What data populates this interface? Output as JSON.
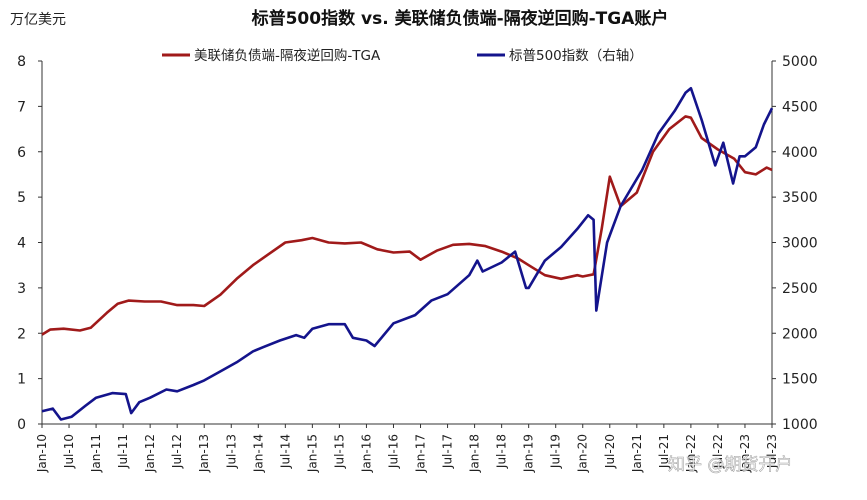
{
  "chart_data": {
    "type": "line",
    "title": "标普500指数 vs. 美联储负债端-隔夜逆回购-TGA账户",
    "y_left_unit": "万亿美元",
    "y_left_range": [
      0,
      8
    ],
    "y_left_ticks": [
      0,
      1,
      2,
      3,
      4,
      5,
      6,
      7,
      8
    ],
    "y_right_range": [
      1000,
      5000
    ],
    "y_right_ticks": [
      1000,
      1500,
      2000,
      2500,
      3000,
      3500,
      4000,
      4500,
      5000
    ],
    "x_range": [
      2010.0,
      2023.5
    ],
    "x_tick_labels": [
      "Jan-10",
      "Jul-10",
      "Jan-11",
      "Jul-11",
      "Jan-12",
      "Jul-12",
      "Jan-13",
      "Jul-13",
      "Jan-14",
      "Jul-14",
      "Jan-15",
      "Jul-15",
      "Jan-16",
      "Jul-16",
      "Jan-17",
      "Jul-17",
      "Jan-18",
      "Jul-18",
      "Jan-19",
      "Jul-19",
      "Jan-20",
      "Jul-20",
      "Jan-21",
      "Jul-21",
      "Jan-22",
      "Jul-22",
      "Jan-23",
      "Jul-23"
    ],
    "legend_position": "top",
    "grid": false,
    "series": [
      {
        "name": "美联储负债端-隔夜逆回购-TGA",
        "axis": "left",
        "color": "#a01a1a",
        "x": [
          2010.0,
          2010.15,
          2010.4,
          2010.7,
          2010.9,
          2011.2,
          2011.4,
          2011.6,
          2011.9,
          2012.2,
          2012.5,
          2012.8,
          2013.0,
          2013.3,
          2013.6,
          2013.9,
          2014.2,
          2014.5,
          2014.8,
          2015.0,
          2015.3,
          2015.6,
          2015.9,
          2016.2,
          2016.5,
          2016.8,
          2017.0,
          2017.3,
          2017.6,
          2017.9,
          2018.2,
          2018.5,
          2018.8,
          2019.0,
          2019.3,
          2019.6,
          2019.9,
          2020.0,
          2020.2,
          2020.35,
          2020.5,
          2020.7,
          2021.0,
          2021.3,
          2021.6,
          2021.9,
          2022.0,
          2022.2,
          2022.5,
          2022.8,
          2023.0,
          2023.2,
          2023.4,
          2023.5
        ],
        "y": [
          1.97,
          2.08,
          2.1,
          2.06,
          2.12,
          2.45,
          2.65,
          2.72,
          2.7,
          2.7,
          2.62,
          2.62,
          2.6,
          2.85,
          3.2,
          3.5,
          3.75,
          4.0,
          4.05,
          4.1,
          4.0,
          3.98,
          4.0,
          3.85,
          3.78,
          3.8,
          3.62,
          3.82,
          3.95,
          3.97,
          3.92,
          3.8,
          3.65,
          3.5,
          3.28,
          3.2,
          3.28,
          3.25,
          3.3,
          4.3,
          5.45,
          4.8,
          5.1,
          6.0,
          6.5,
          6.78,
          6.75,
          6.3,
          6.05,
          5.85,
          5.55,
          5.5,
          5.65,
          5.6
        ]
      },
      {
        "name": "标普500指数（右轴）",
        "axis": "right",
        "color": "#14148c",
        "x": [
          2010.0,
          2010.2,
          2010.35,
          2010.55,
          2010.8,
          2011.0,
          2011.3,
          2011.55,
          2011.65,
          2011.8,
          2012.0,
          2012.3,
          2012.5,
          2012.8,
          2013.0,
          2013.3,
          2013.6,
          2013.9,
          2014.1,
          2014.4,
          2014.7,
          2014.85,
          2015.0,
          2015.3,
          2015.6,
          2015.75,
          2016.0,
          2016.15,
          2016.5,
          2016.9,
          2017.2,
          2017.5,
          2017.9,
          2018.05,
          2018.15,
          2018.5,
          2018.75,
          2018.95,
          2019.0,
          2019.3,
          2019.6,
          2019.9,
          2020.1,
          2020.2,
          2020.25,
          2020.45,
          2020.7,
          2020.9,
          2021.1,
          2021.4,
          2021.7,
          2021.9,
          2022.0,
          2022.2,
          2022.45,
          2022.6,
          2022.78,
          2022.9,
          2023.0,
          2023.2,
          2023.35,
          2023.5
        ],
        "y": [
          1140,
          1170,
          1050,
          1080,
          1200,
          1290,
          1340,
          1330,
          1120,
          1240,
          1290,
          1380,
          1360,
          1430,
          1480,
          1580,
          1680,
          1800,
          1850,
          1920,
          1980,
          1950,
          2050,
          2100,
          2100,
          1950,
          1920,
          1860,
          2110,
          2200,
          2360,
          2430,
          2640,
          2800,
          2680,
          2780,
          2900,
          2500,
          2500,
          2800,
          2950,
          3150,
          3300,
          3250,
          2250,
          3000,
          3400,
          3600,
          3800,
          4200,
          4450,
          4650,
          4700,
          4350,
          3850,
          4100,
          3650,
          3950,
          3950,
          4050,
          4300,
          4480
        ]
      }
    ],
    "legend": [
      "美联储负债端-隔夜逆回购-TGA",
      "标普500指数（右轴）"
    ],
    "watermark": "知乎 @期货开户"
  }
}
